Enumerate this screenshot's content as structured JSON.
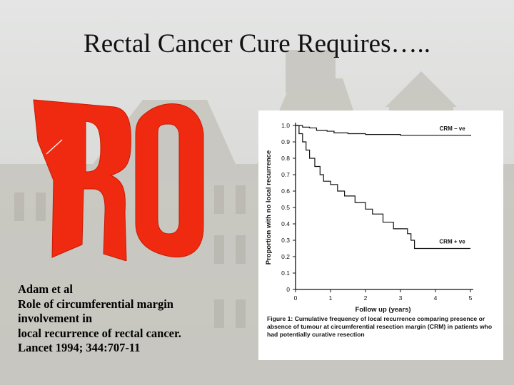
{
  "slide": {
    "title": "Rectal Cancer Cure Requires…..",
    "logo_text": "R0",
    "citation": [
      "Adam et al",
      "Role of circumferential margin",
      "involvement in",
      "local recurrence of rectal cancer.",
      "Lancet 1994; 344:707-11"
    ]
  },
  "figure": {
    "caption_label": "Figure 1:",
    "caption_text": "Cumulative frequency of local recurrence comparing presence or absence of tumour at circumferential resection margin (CRM) in patients who had potentially curative resection"
  },
  "chart_data": {
    "type": "line",
    "ylabel": "Proportion with no local recurrence",
    "xlabel": "Follow up (years)",
    "xlim": [
      0,
      5
    ],
    "ylim": [
      0,
      1.0
    ],
    "x_ticks": [
      "0",
      "1",
      "2",
      "3",
      "4",
      "5"
    ],
    "y_ticks": [
      "0",
      "0.1",
      "0.2",
      "0.3",
      "0.4",
      "0.5",
      "0.6",
      "0.7",
      "0.8",
      "0.9",
      "1.0"
    ],
    "series": [
      {
        "name": "CRM – ve",
        "points": [
          [
            0,
            1.0
          ],
          [
            0.2,
            0.99
          ],
          [
            0.4,
            0.985
          ],
          [
            0.6,
            0.97
          ],
          [
            0.9,
            0.965
          ],
          [
            1.1,
            0.955
          ],
          [
            1.5,
            0.95
          ],
          [
            2.0,
            0.945
          ],
          [
            3.0,
            0.94
          ],
          [
            4.0,
            0.94
          ],
          [
            5.0,
            0.935
          ]
        ]
      },
      {
        "name": "CRM + ve",
        "points": [
          [
            0,
            1.0
          ],
          [
            0.1,
            0.95
          ],
          [
            0.2,
            0.9
          ],
          [
            0.3,
            0.85
          ],
          [
            0.4,
            0.8
          ],
          [
            0.55,
            0.75
          ],
          [
            0.7,
            0.7
          ],
          [
            0.8,
            0.66
          ],
          [
            1.0,
            0.64
          ],
          [
            1.2,
            0.6
          ],
          [
            1.4,
            0.57
          ],
          [
            1.7,
            0.53
          ],
          [
            2.0,
            0.49
          ],
          [
            2.2,
            0.46
          ],
          [
            2.5,
            0.41
          ],
          [
            2.8,
            0.37
          ],
          [
            3.2,
            0.34
          ],
          [
            3.3,
            0.3
          ],
          [
            3.4,
            0.25
          ],
          [
            4.0,
            0.25
          ],
          [
            5.0,
            0.25
          ]
        ]
      }
    ]
  }
}
